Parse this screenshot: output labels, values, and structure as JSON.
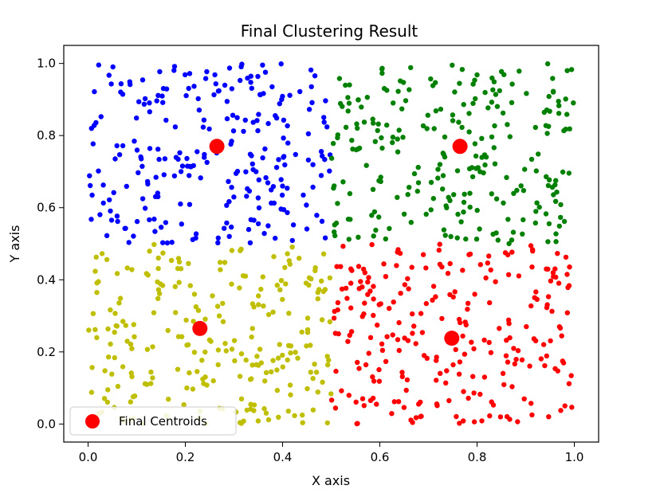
{
  "chart_data": {
    "type": "scatter",
    "title": "Final Clustering Result",
    "xlabel": "X axis",
    "ylabel": "Y axis",
    "xlim": [
      -0.05,
      1.05
    ],
    "ylim": [
      -0.05,
      1.05
    ],
    "xticks": [
      "0.0",
      "0.2",
      "0.4",
      "0.6",
      "0.8",
      "1.0"
    ],
    "yticks": [
      "0.0",
      "0.2",
      "0.4",
      "0.6",
      "0.8",
      "1.0"
    ],
    "grid": false,
    "clusters": [
      {
        "color": "#0000ff",
        "x_range": [
          0.0,
          0.5
        ],
        "y_range": [
          0.5,
          1.0
        ],
        "approx_points": 250
      },
      {
        "color": "#008000",
        "x_range": [
          0.5,
          1.0
        ],
        "y_range": [
          0.5,
          1.0
        ],
        "approx_points": 250
      },
      {
        "color": "#bfbf00",
        "x_range": [
          0.0,
          0.5
        ],
        "y_range": [
          0.0,
          0.5
        ],
        "approx_points": 250
      },
      {
        "color": "#ff0000",
        "x_range": [
          0.5,
          1.0
        ],
        "y_range": [
          0.0,
          0.5
        ],
        "approx_points": 250
      }
    ],
    "centroids": {
      "label": "Final Centroids",
      "color": "#ff0000",
      "points": [
        {
          "x": 0.265,
          "y": 0.77
        },
        {
          "x": 0.765,
          "y": 0.77
        },
        {
          "x": 0.23,
          "y": 0.265
        },
        {
          "x": 0.748,
          "y": 0.238
        }
      ]
    },
    "legend": {
      "placement": "lower-left",
      "entries": [
        "Final Centroids"
      ]
    }
  }
}
